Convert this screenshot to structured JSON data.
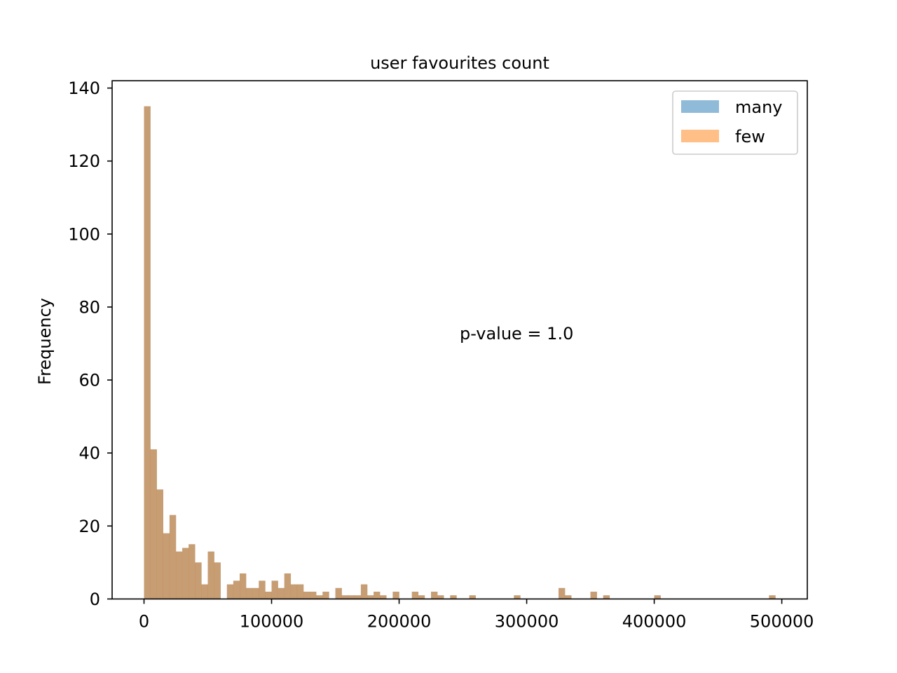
{
  "chart_data": {
    "type": "bar",
    "title": "user favourites count",
    "xlabel": "",
    "ylabel": "Frequency",
    "xlim": [
      -25000,
      520000
    ],
    "ylim": [
      0,
      142
    ],
    "xticks": [
      0,
      100000,
      200000,
      300000,
      400000,
      500000
    ],
    "yticks": [
      0,
      20,
      40,
      60,
      80,
      100,
      120,
      140
    ],
    "grid": false,
    "legend_position": "top-right",
    "annotation": "p-value = 1.0",
    "bin_start": 0,
    "bin_width": 5000,
    "series": [
      {
        "name": "many",
        "color": "#1f77b4",
        "alpha": 0.5,
        "values": [
          135,
          41,
          30,
          18,
          23,
          13,
          14,
          15,
          10,
          4,
          13,
          10,
          0,
          4,
          5,
          7,
          3,
          3,
          5,
          2,
          5,
          3,
          7,
          4,
          4,
          2,
          2,
          1,
          2,
          0,
          3,
          1,
          1,
          1,
          4,
          1,
          2,
          1,
          0,
          2,
          0,
          0,
          2,
          1,
          0,
          2,
          1,
          0,
          1,
          0,
          0,
          1,
          0,
          0,
          0,
          0,
          0,
          0,
          1,
          0,
          0,
          0,
          0,
          0,
          0,
          3,
          1,
          0,
          0,
          0,
          2,
          0,
          1,
          0,
          0,
          0,
          0,
          0,
          0,
          0,
          1,
          0,
          0,
          0,
          0,
          0,
          0,
          0,
          0,
          0,
          0,
          0,
          0,
          0,
          0,
          0,
          0,
          0,
          1,
          0
        ]
      },
      {
        "name": "few",
        "color": "#ff7f0e",
        "alpha": 0.5,
        "values": [
          135,
          41,
          30,
          18,
          23,
          13,
          14,
          15,
          10,
          4,
          13,
          10,
          0,
          4,
          5,
          7,
          3,
          3,
          5,
          2,
          5,
          3,
          7,
          4,
          4,
          2,
          2,
          1,
          2,
          0,
          3,
          1,
          1,
          1,
          4,
          1,
          2,
          1,
          0,
          2,
          0,
          0,
          2,
          1,
          0,
          2,
          1,
          0,
          1,
          0,
          0,
          1,
          0,
          0,
          0,
          0,
          0,
          0,
          1,
          0,
          0,
          0,
          0,
          0,
          0,
          3,
          1,
          0,
          0,
          0,
          2,
          0,
          1,
          0,
          0,
          0,
          0,
          0,
          0,
          0,
          1,
          0,
          0,
          0,
          0,
          0,
          0,
          0,
          0,
          0,
          0,
          0,
          0,
          0,
          0,
          0,
          0,
          0,
          1,
          0
        ]
      }
    ]
  }
}
